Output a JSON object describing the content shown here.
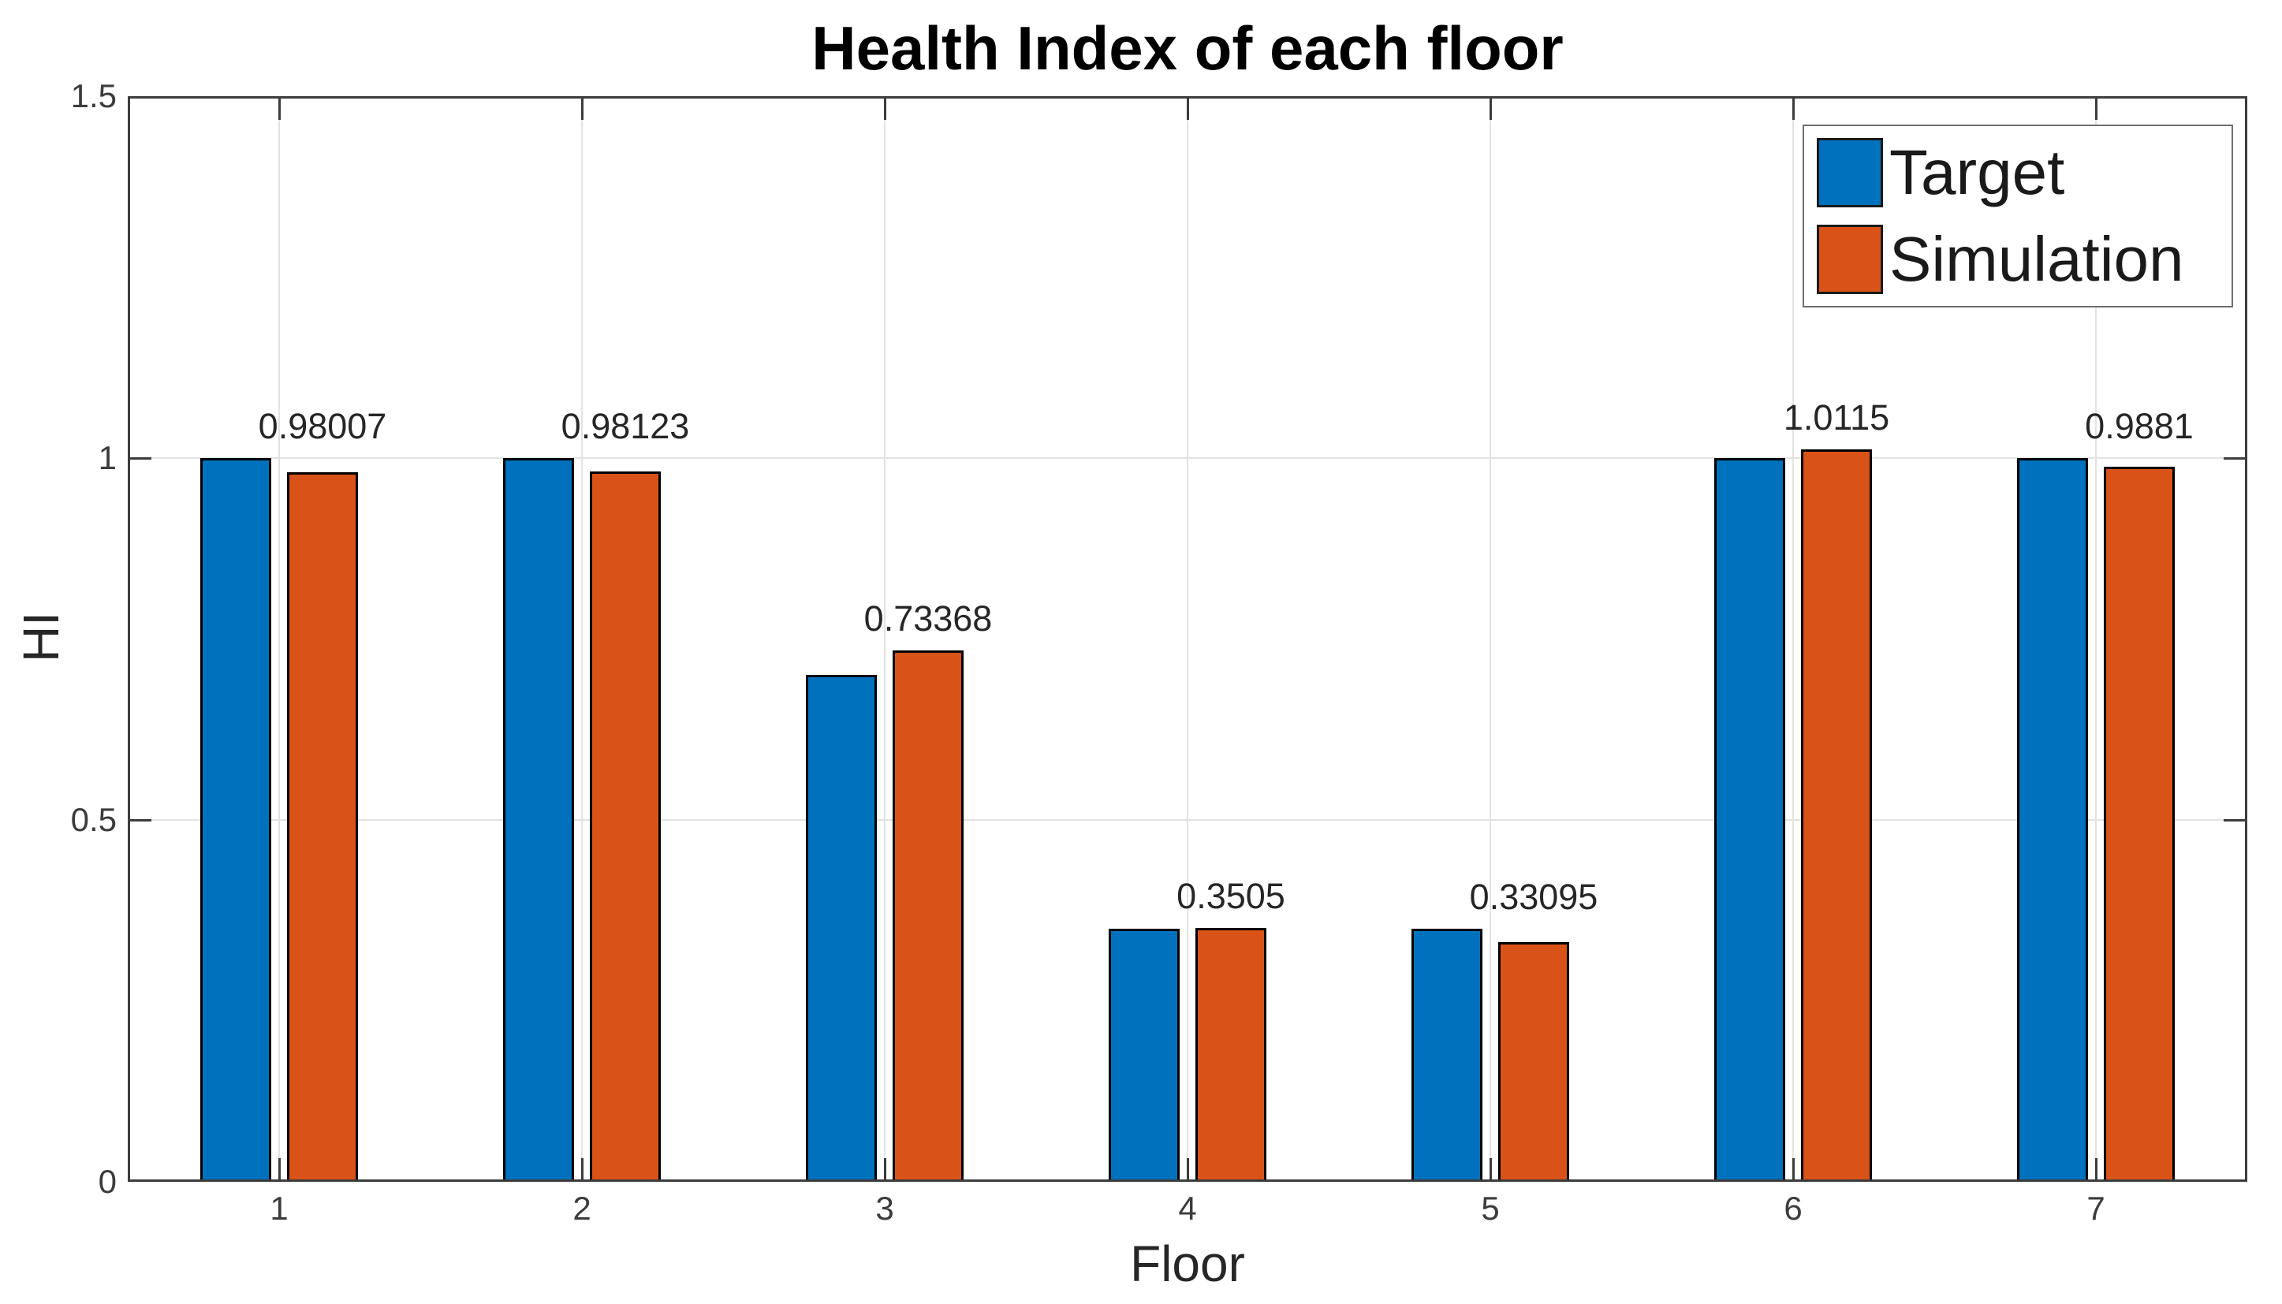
{
  "figure": {
    "title": "Health Index of each floor",
    "xlabel": "Floor",
    "ylabel": "HI"
  },
  "legend": {
    "position": "northeast",
    "entries": [
      {
        "label": "Target",
        "color": "#0072BD"
      },
      {
        "label": "Simulation",
        "color": "#D95319"
      }
    ]
  },
  "chart_data": {
    "type": "bar",
    "title": "Health Index of each floor",
    "xlabel": "Floor",
    "ylabel": "HI",
    "categories": [
      "1",
      "2",
      "3",
      "4",
      "5",
      "6",
      "7"
    ],
    "series": [
      {
        "name": "Target",
        "color": "#0072BD",
        "values": [
          1,
          1,
          0.7,
          0.35,
          0.35,
          1,
          1
        ]
      },
      {
        "name": "Simulation",
        "color": "#D95319",
        "values": [
          0.98007,
          0.98123,
          0.73368,
          0.3505,
          0.33095,
          1.0115,
          0.9881
        ]
      }
    ],
    "bar_value_labels": [
      "0.98007",
      "0.98123",
      "0.73368",
      "0.3505",
      "0.33095",
      "1.0115",
      "0.9881"
    ],
    "ylim": [
      0,
      1.5
    ],
    "yticks": [
      0,
      0.5,
      1,
      1.5
    ],
    "ytick_labels": [
      "0",
      "0.5",
      "1",
      "1.5"
    ],
    "grid": true,
    "legend_position": "northeast",
    "colors": {
      "target_bar": "#0072BD",
      "simulation_bar": "#D95319",
      "bar_edge": "#000000",
      "axis": "#3c3c3c",
      "grid": "#e2e2e2",
      "background": "#ffffff",
      "text": "#262626"
    }
  }
}
